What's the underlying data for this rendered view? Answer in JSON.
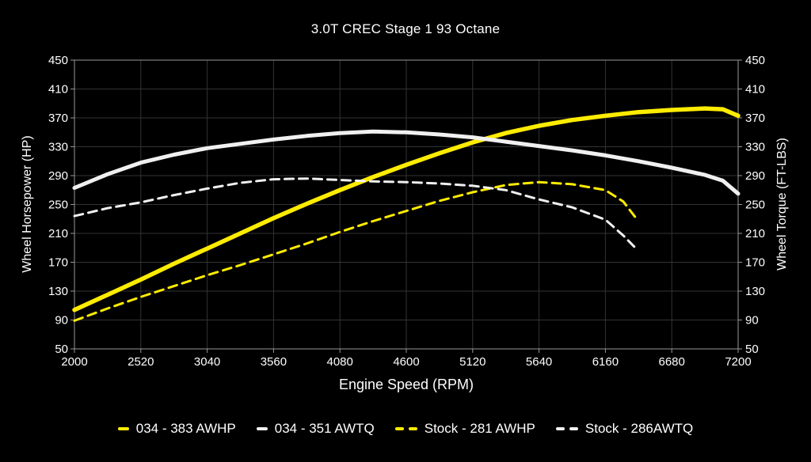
{
  "chart": {
    "title": "3.0T CREC Stage 1 93 Octane",
    "left_axis": {
      "title": "Wheel Horsepower (HP)"
    },
    "right_axis": {
      "title": "Wheel Torque (FT-LBS)"
    },
    "x_axis": {
      "title": "Engine Speed (RPM)"
    }
  },
  "colors": {
    "background": "#000000",
    "text": "#ffffff",
    "gridline": "#333333",
    "axis_spine": "#999999",
    "accent_yellow": "#ffec00",
    "curve_white": "#f0f0f0"
  },
  "legend": {
    "items": [
      {
        "label": "034 - 383 AWHP",
        "color": "#ffec00",
        "dashed": false
      },
      {
        "label": "034 - 351 AWTQ",
        "color": "#f0f0f0",
        "dashed": false
      },
      {
        "label": "Stock - 281 AWHP",
        "color": "#ffec00",
        "dashed": true
      },
      {
        "label": "Stock - 286AWTQ",
        "color": "#f0f0f0",
        "dashed": true
      }
    ]
  },
  "chart_data": {
    "type": "line",
    "title": "3.0T CREC Stage 1 93 Octane",
    "xlabel": "Engine Speed (RPM)",
    "ylabel_left": "Wheel Horsepower (HP)",
    "ylabel_right": "Wheel Torque (FT-LBS)",
    "x_range": [
      2000,
      7200
    ],
    "x_ticks": [
      2000,
      2520,
      3040,
      3560,
      4080,
      4600,
      5120,
      5640,
      6160,
      6680,
      7200
    ],
    "y_range": [
      50,
      450
    ],
    "y_ticks": [
      50,
      90,
      130,
      170,
      210,
      250,
      290,
      330,
      370,
      410,
      450
    ],
    "grid": true,
    "legend_position": "bottom",
    "series": [
      {
        "name": "034 - 383 AWHP",
        "id": "034-awhp",
        "axis": "left",
        "color": "#ffec00",
        "style": "solid",
        "width": 5.5,
        "x": [
          2000,
          2260,
          2520,
          2780,
          3040,
          3300,
          3560,
          3820,
          4080,
          4340,
          4600,
          4860,
          5120,
          5380,
          5640,
          5900,
          6160,
          6420,
          6680,
          6940,
          7080,
          7200
        ],
        "y": [
          104,
          125,
          146,
          168,
          189,
          210,
          231,
          251,
          270,
          288,
          305,
          321,
          336,
          349,
          359,
          367,
          373,
          378,
          381,
          383,
          382,
          373
        ]
      },
      {
        "name": "034 - 351 AWTQ",
        "id": "034-awtq",
        "axis": "right",
        "color": "#f0f0f0",
        "style": "solid",
        "width": 5,
        "x": [
          2000,
          2260,
          2520,
          2780,
          3040,
          3300,
          3560,
          3820,
          4080,
          4340,
          4600,
          4860,
          5120,
          5380,
          5640,
          5900,
          6160,
          6420,
          6680,
          6940,
          7080,
          7200
        ],
        "y": [
          273,
          292,
          308,
          319,
          328,
          334,
          340,
          345,
          349,
          351,
          350,
          347,
          343,
          337,
          331,
          325,
          318,
          310,
          301,
          291,
          283,
          265
        ]
      },
      {
        "name": "Stock - 281 AWHP",
        "id": "stock-awhp",
        "axis": "left",
        "color": "#ffec00",
        "style": "dashed",
        "width": 3,
        "x": [
          2000,
          2260,
          2520,
          2780,
          3040,
          3300,
          3560,
          3820,
          4080,
          4340,
          4600,
          4860,
          5120,
          5380,
          5640,
          5900,
          6160,
          6300,
          6400
        ],
        "y": [
          89,
          106,
          122,
          137,
          152,
          166,
          181,
          196,
          212,
          227,
          241,
          255,
          267,
          277,
          281,
          278,
          270,
          254,
          231
        ]
      },
      {
        "name": "Stock - 286AWTQ",
        "id": "stock-awtq",
        "axis": "right",
        "color": "#f0f0f0",
        "style": "dashed",
        "width": 3,
        "x": [
          2000,
          2260,
          2520,
          2780,
          3040,
          3300,
          3560,
          3820,
          4080,
          4340,
          4600,
          4860,
          5120,
          5380,
          5640,
          5900,
          6160,
          6300,
          6400
        ],
        "y": [
          234,
          245,
          253,
          263,
          272,
          280,
          285,
          286,
          284,
          282,
          281,
          279,
          276,
          270,
          257,
          246,
          229,
          207,
          189
        ]
      }
    ]
  }
}
